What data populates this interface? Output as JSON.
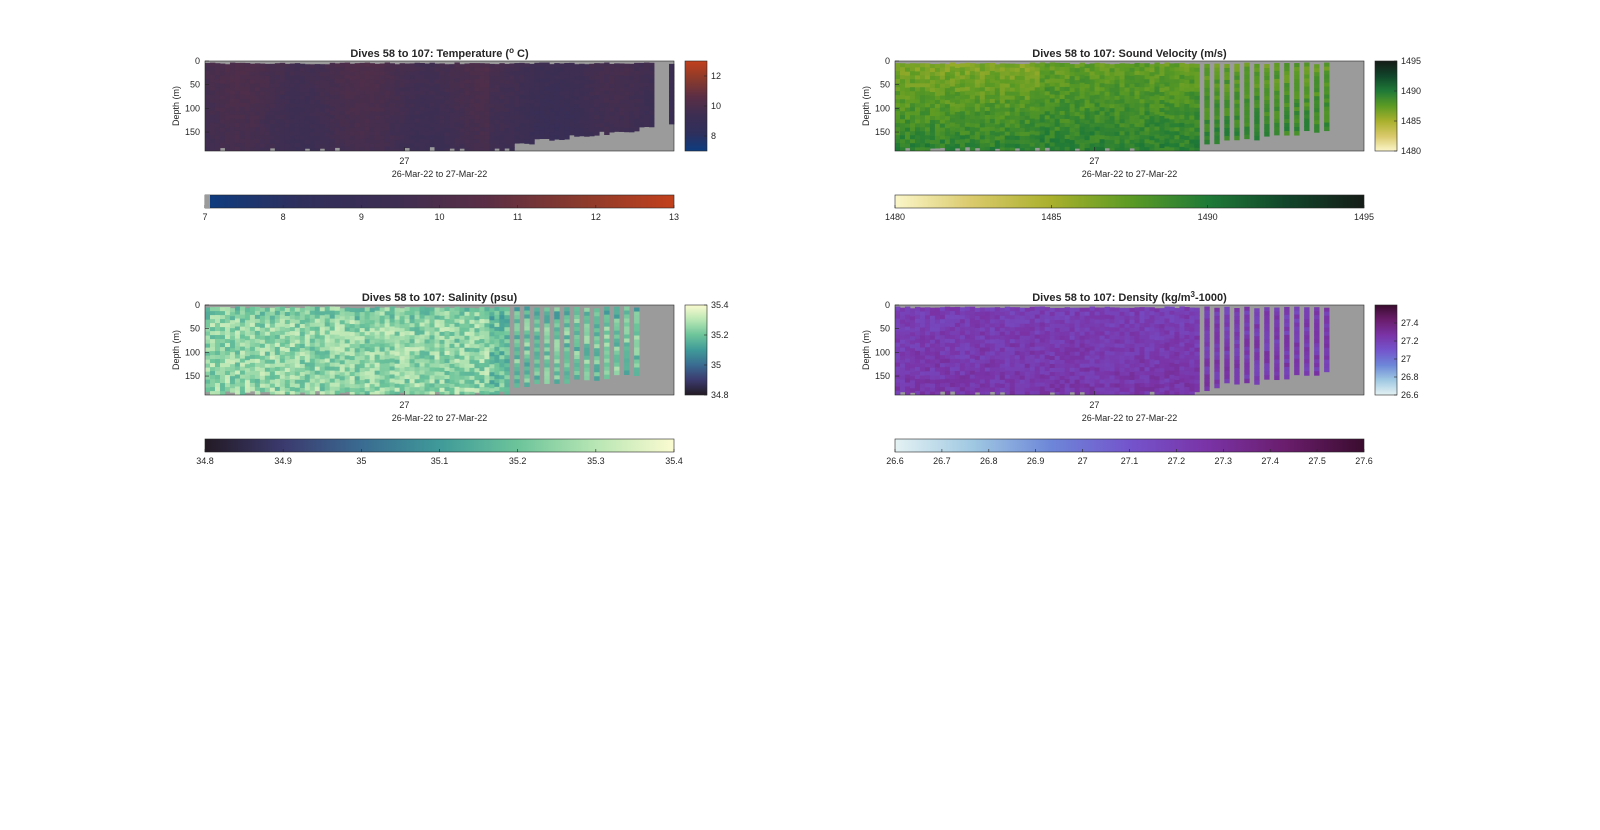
{
  "figure": {
    "background": "#ffffff",
    "nodata_color": "#9b9b9b"
  },
  "chart_data": [
    {
      "type": "heatmap",
      "title_prefix": "Dives 58 to 107: Temperature (",
      "title_sup": "o",
      "title_suffix": " C)",
      "ylabel": "Depth (m)",
      "xtick_label": "27",
      "xlabel": "26-Mar-22 to 27-Mar-22",
      "yticks": [
        "0",
        "50",
        "100",
        "150"
      ],
      "ylim": [
        0,
        190
      ],
      "y_reversed": true,
      "clim": [
        7,
        13
      ],
      "colors": [
        "#0d3c80",
        "#2f2f5c",
        "#3d2e52",
        "#5a2e45",
        "#8a3a2c",
        "#c2401c"
      ],
      "typical_value": 9.5,
      "profiles": "all dives dense, near-continuous",
      "vertical_colorbar_ticks": [
        "12",
        "10",
        "8"
      ],
      "vertical_colorbar_values": [
        12,
        10,
        8
      ],
      "horizontal_colorbar_ticks": [
        "7",
        "8",
        "9",
        "10",
        "11",
        "12",
        "13"
      ],
      "horizontal_colorbar_values": [
        7,
        8,
        9,
        10,
        11,
        12,
        13
      ],
      "seed": 11
    },
    {
      "type": "heatmap",
      "title_prefix": "Dives 58 to 107: Sound Velocity (m/s)",
      "title_sup": "",
      "title_suffix": "",
      "ylabel": "Depth (m)",
      "xtick_label": "27",
      "xlabel": "26-Mar-22 to 27-Mar-22",
      "yticks": [
        "0",
        "50",
        "100",
        "150"
      ],
      "ylim": [
        0,
        190
      ],
      "y_reversed": true,
      "clim": [
        1480,
        1495
      ],
      "colors": [
        "#fbf6c9",
        "#d9c96a",
        "#a9b02c",
        "#5c9b24",
        "#1f7a37",
        "#11452a",
        "#151c17"
      ],
      "typical_value": 1488.5,
      "profiles": "dense first 2/3, sparse stripes after",
      "vertical_colorbar_ticks": [
        "1495",
        "1490",
        "1485",
        "1480"
      ],
      "vertical_colorbar_values": [
        1495,
        1490,
        1485,
        1480
      ],
      "horizontal_colorbar_ticks": [
        "1480",
        "1485",
        "1490",
        "1495"
      ],
      "horizontal_colorbar_values": [
        1480,
        1485,
        1490,
        1495
      ],
      "seed": 23
    },
    {
      "type": "heatmap",
      "title_prefix": "Dives 58 to 107: Salinity (psu)",
      "title_sup": "",
      "title_suffix": "",
      "ylabel": "Depth (m)",
      "xtick_label": "27",
      "xlabel": "26-Mar-22 to 27-Mar-22",
      "yticks": [
        "0",
        "50",
        "100",
        "150"
      ],
      "ylim": [
        0,
        190
      ],
      "y_reversed": true,
      "clim": [
        34.8,
        35.4
      ],
      "colors": [
        "#231a24",
        "#3b3a6e",
        "#3a6b91",
        "#3f9a99",
        "#6cc49a",
        "#b8e6b4",
        "#fbfbd0"
      ],
      "typical_value": 35.25,
      "profiles": "dense first 2/3, sparse stripes after",
      "vertical_colorbar_ticks": [
        "35.4",
        "35.2",
        "35",
        "34.8"
      ],
      "vertical_colorbar_values": [
        35.4,
        35.2,
        35.0,
        34.8
      ],
      "horizontal_colorbar_ticks": [
        "34.8",
        "34.9",
        "35",
        "35.1",
        "35.2",
        "35.3",
        "35.4"
      ],
      "horizontal_colorbar_values": [
        34.8,
        34.9,
        35.0,
        35.1,
        35.2,
        35.3,
        35.4
      ],
      "seed": 37
    },
    {
      "type": "heatmap",
      "title_prefix": "Dives 58 to 107: Density (kg/m",
      "title_sup": "3",
      "title_suffix": "-1000)",
      "ylabel": "Depth (m)",
      "xtick_label": "27",
      "xlabel": "26-Mar-22 to 27-Mar-22",
      "yticks": [
        "0",
        "50",
        "100",
        "150"
      ],
      "ylim": [
        0,
        190
      ],
      "y_reversed": true,
      "clim": [
        26.6,
        27.6
      ],
      "colors": [
        "#e4f2f3",
        "#9fc8e2",
        "#6d86d8",
        "#7454cc",
        "#7a33a6",
        "#6a1d6c",
        "#3a0c2e"
      ],
      "typical_value": 27.25,
      "profiles": "dense first 2/3, sparse stripes after",
      "vertical_colorbar_ticks": [
        "27.4",
        "27.2",
        "27",
        "26.8",
        "26.6"
      ],
      "vertical_colorbar_values": [
        27.4,
        27.2,
        27.0,
        26.8,
        26.6
      ],
      "horizontal_colorbar_ticks": [
        "26.6",
        "26.7",
        "26.8",
        "26.9",
        "27",
        "27.1",
        "27.2",
        "27.3",
        "27.4",
        "27.5",
        "27.6"
      ],
      "horizontal_colorbar_values": [
        26.6,
        26.7,
        26.8,
        26.9,
        27.0,
        27.1,
        27.2,
        27.3,
        27.4,
        27.5,
        27.6
      ],
      "seed": 53
    }
  ]
}
